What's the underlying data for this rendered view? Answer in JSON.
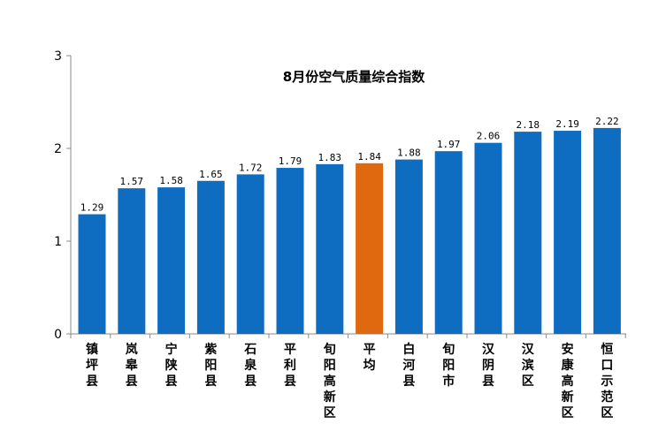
{
  "chart_data": {
    "type": "bar",
    "title": "8月份空气质量综合指数",
    "xlabel": "",
    "ylabel": "",
    "ylim": [
      0,
      3
    ],
    "yticks": [
      "0",
      "1",
      "2",
      "3"
    ],
    "grid": false,
    "legend": "none",
    "categories": [
      "镇坪县",
      "岚皋县",
      "宁陕县",
      "紫阳县",
      "石泉县",
      "平利县",
      "旬阳高新区",
      "平均",
      "白河县",
      "旬阳市",
      "汉阴县",
      "汉滨区",
      "安康高新区",
      "恒口示范区"
    ],
    "values": [
      1.29,
      1.57,
      1.58,
      1.65,
      1.72,
      1.79,
      1.83,
      1.84,
      1.88,
      1.97,
      2.06,
      2.18,
      2.19,
      2.22
    ],
    "value_labels": [
      "1.29",
      "1.57",
      "1.58",
      "1.65",
      "1.72",
      "1.79",
      "1.83",
      "1.84",
      "1.88",
      "1.97",
      "2.06",
      "2.18",
      "2.19",
      "2.22"
    ],
    "colors": {
      "bar": "#0f6dc1",
      "highlight": "#e0680f",
      "axis": "#8a8a8a",
      "text": "#000000"
    },
    "highlight_index": 7
  }
}
